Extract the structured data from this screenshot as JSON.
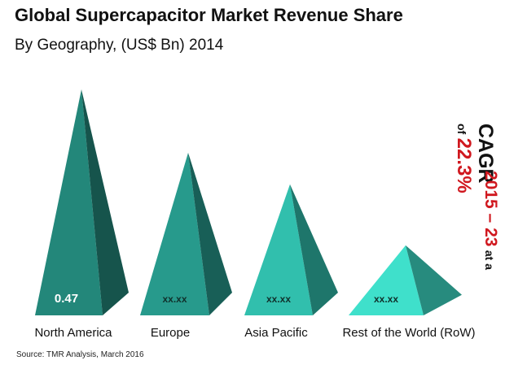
{
  "header": {
    "title": "Global Supercapacitor Market Revenue Share",
    "subtitle": "By Geography, (US$ Bn) 2014"
  },
  "source": "Source: TMR Analysis, March 2016",
  "cagr": {
    "label": "CAGR",
    "period": "2015 – 23",
    "at": "at a",
    "of": "of",
    "rate": "22.3%"
  },
  "colors": {
    "series": [
      "#23877a",
      "#279a8c",
      "#31bfad",
      "#3fe0cb"
    ],
    "accent_red": "#d0181f"
  },
  "chart_data": {
    "type": "bar",
    "title": "Global Supercapacitor Market Revenue Share",
    "subtitle": "By Geography, (US$ Bn) 2014",
    "categories": [
      "North America",
      "Europe",
      "Asia Pacific",
      "Rest of the World (RoW)"
    ],
    "value_labels": [
      "0.47",
      "xx.xx",
      "xx.xx",
      "xx.xx"
    ],
    "relative_heights": [
      1.0,
      0.72,
      0.58,
      0.31
    ],
    "shape": "pyramid",
    "legend": "none",
    "grid": false
  }
}
